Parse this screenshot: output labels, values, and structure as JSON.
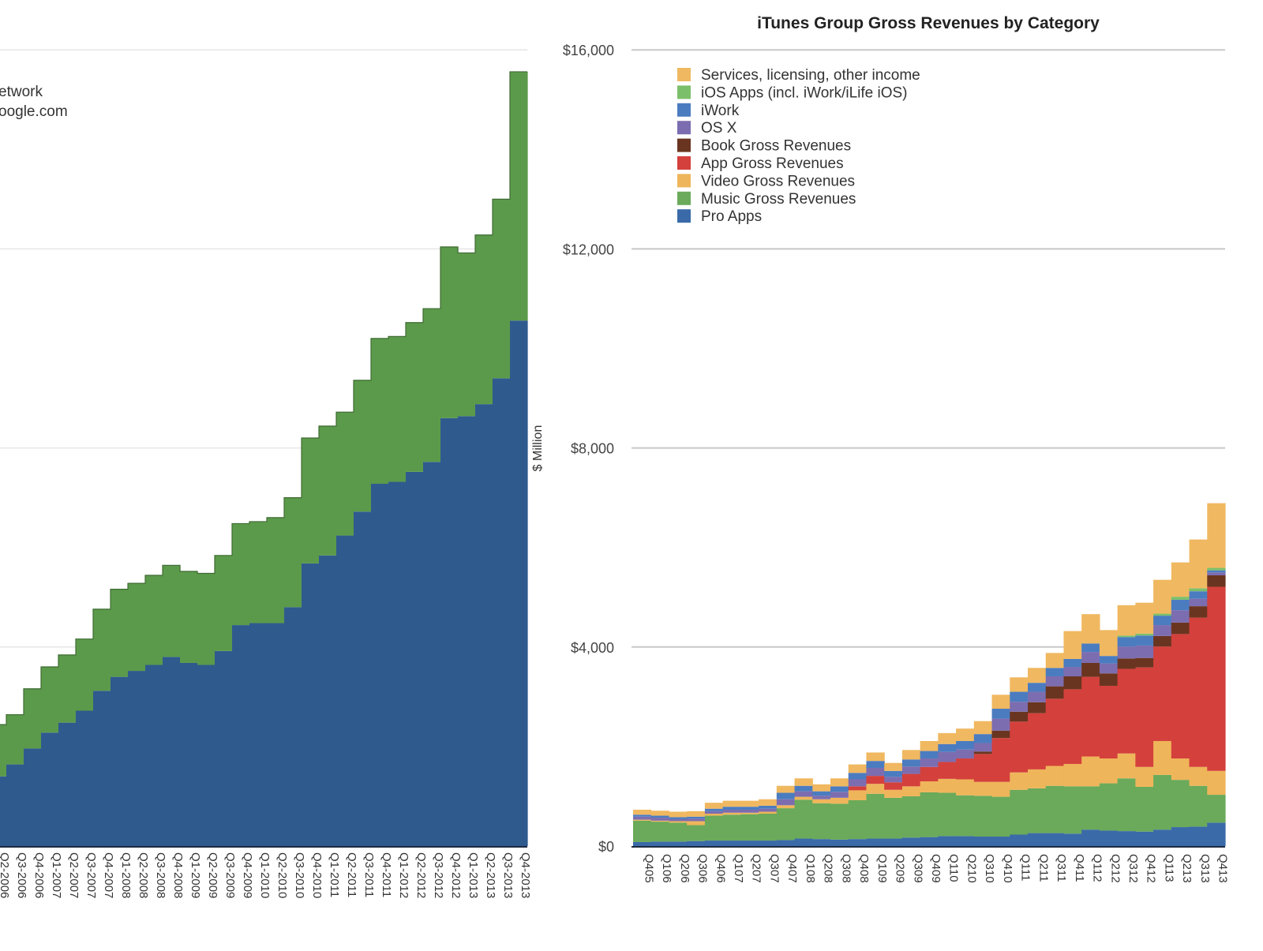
{
  "chart_data": [
    {
      "type": "area",
      "stacked": true,
      "stepped": true,
      "title": "",
      "xlabel": "",
      "ylabel": "",
      "legend_fragments": [
        "etwork",
        "oogle.com"
      ],
      "y_units": "gridline steps (axis tick labels cropped out of view)",
      "ylim": [
        0,
        4
      ],
      "grid": true,
      "categories": [
        "Q2-2006",
        "Q3-2006",
        "Q4-2006",
        "Q1-2007",
        "Q2-2007",
        "Q3-2007",
        "Q4-2007",
        "Q1-2008",
        "Q2-2008",
        "Q3-2008",
        "Q4-2008",
        "Q1-2009",
        "Q2-2009",
        "Q3-2009",
        "Q4-2009",
        "Q1-2010",
        "Q2-2010",
        "Q3-2010",
        "Q4-2010",
        "Q1-2011",
        "Q2-2011",
        "Q3-2011",
        "Q4-2011",
        "Q1-2012",
        "Q2-2012",
        "Q3-2012",
        "Q4-2012",
        "Q1-2013",
        "Q2-2013",
        "Q3-2013",
        "Q4-2013"
      ],
      "series": [
        {
          "name": "Blue series (bottom)",
          "color": "#2f5a8e",
          "values": [
            0.35,
            0.41,
            0.49,
            0.57,
            0.62,
            0.68,
            0.78,
            0.85,
            0.88,
            0.91,
            0.95,
            0.92,
            0.91,
            0.98,
            1.11,
            1.12,
            1.12,
            1.2,
            1.42,
            1.46,
            1.56,
            1.68,
            1.82,
            1.83,
            1.88,
            1.93,
            2.15,
            2.16,
            2.22,
            2.35,
            2.64
          ]
        },
        {
          "name": "Green series (top)",
          "color": "#5b9a4a",
          "values": [
            0.26,
            0.25,
            0.3,
            0.33,
            0.34,
            0.36,
            0.41,
            0.44,
            0.44,
            0.45,
            0.46,
            0.46,
            0.46,
            0.48,
            0.51,
            0.51,
            0.53,
            0.55,
            0.63,
            0.65,
            0.62,
            0.66,
            0.73,
            0.73,
            0.75,
            0.77,
            0.86,
            0.82,
            0.85,
            0.9,
            1.25
          ]
        }
      ]
    },
    {
      "type": "area",
      "stacked": true,
      "stepped": true,
      "title": "iTunes Group Gross Revenues by Category",
      "xlabel": "",
      "ylabel": "$ Million",
      "ylim": [
        0,
        16000
      ],
      "yticks": [
        "$0",
        "$4,000",
        "$8,000",
        "$12,000",
        "$16,000"
      ],
      "ytick_values": [
        0,
        4000,
        8000,
        12000,
        16000
      ],
      "grid": true,
      "legend_position": "top-left",
      "categories": [
        "Q405",
        "Q106",
        "Q206",
        "Q306",
        "Q406",
        "Q107",
        "Q207",
        "Q307",
        "Q407",
        "Q108",
        "Q208",
        "Q308",
        "Q408",
        "Q109",
        "Q209",
        "Q309",
        "Q409",
        "Q110",
        "Q210",
        "Q310",
        "Q410",
        "Q111",
        "Q211",
        "Q311",
        "Q411",
        "Q112",
        "Q212",
        "Q312",
        "Q412",
        "Q113",
        "Q213",
        "Q313",
        "Q413"
      ],
      "series": [
        {
          "name": "Pro Apps",
          "color": "#3a6aa8",
          "values": [
            80,
            90,
            90,
            100,
            110,
            110,
            110,
            110,
            120,
            150,
            140,
            130,
            140,
            150,
            150,
            170,
            180,
            200,
            200,
            190,
            190,
            230,
            260,
            260,
            250,
            330,
            310,
            300,
            290,
            330,
            380,
            390,
            470
          ]
        },
        {
          "name": "Music Gross Revenues",
          "color": "#6aaa5a",
          "values": [
            430,
            400,
            380,
            320,
            500,
            520,
            530,
            540,
            640,
            780,
            720,
            720,
            780,
            900,
            820,
            830,
            900,
            870,
            820,
            820,
            800,
            900,
            900,
            950,
            950,
            870,
            950,
            1060,
            900,
            1100,
            950,
            820,
            560
          ]
        },
        {
          "name": "Video Gross Revenues",
          "color": "#efb55a",
          "values": [
            20,
            20,
            30,
            80,
            40,
            40,
            30,
            40,
            60,
            60,
            80,
            120,
            200,
            200,
            160,
            200,
            220,
            280,
            320,
            280,
            300,
            350,
            380,
            400,
            450,
            600,
            500,
            500,
            400,
            680,
            430,
            380,
            480
          ]
        },
        {
          "name": "App Gross Revenues",
          "color": "#d4403c",
          "values": [
            0,
            0,
            0,
            0,
            0,
            0,
            0,
            0,
            0,
            0,
            0,
            0,
            80,
            160,
            150,
            250,
            290,
            340,
            420,
            560,
            880,
            1020,
            1130,
            1350,
            1500,
            1600,
            1460,
            1700,
            2000,
            1900,
            2500,
            3000,
            3700
          ]
        },
        {
          "name": "Book Gross Revenues",
          "color": "#6a3520",
          "values": [
            0,
            0,
            0,
            0,
            0,
            0,
            0,
            0,
            0,
            0,
            0,
            0,
            0,
            0,
            0,
            0,
            0,
            0,
            0,
            50,
            150,
            200,
            220,
            250,
            260,
            280,
            250,
            210,
            190,
            210,
            230,
            230,
            230
          ]
        },
        {
          "name": "OS X",
          "color": "#7c6db0",
          "values": [
            60,
            60,
            40,
            50,
            50,
            60,
            60,
            60,
            120,
            110,
            70,
            120,
            140,
            160,
            110,
            150,
            170,
            200,
            180,
            170,
            240,
            200,
            210,
            200,
            190,
            220,
            200,
            240,
            250,
            220,
            250,
            150,
            60
          ]
        },
        {
          "name": "iWork",
          "color": "#4b7cc0",
          "values": [
            40,
            40,
            40,
            40,
            50,
            60,
            60,
            60,
            130,
            110,
            90,
            110,
            130,
            140,
            120,
            140,
            150,
            160,
            170,
            180,
            200,
            200,
            180,
            170,
            160,
            170,
            150,
            190,
            200,
            190,
            210,
            150,
            40
          ]
        },
        {
          "name": "iOS Apps (incl. iWork/iLife iOS)",
          "color": "#7cbf6a",
          "values": [
            0,
            0,
            0,
            0,
            0,
            0,
            0,
            0,
            0,
            0,
            0,
            0,
            0,
            0,
            0,
            0,
            0,
            0,
            0,
            0,
            0,
            0,
            0,
            0,
            0,
            0,
            0,
            30,
            40,
            40,
            60,
            60,
            50
          ]
        },
        {
          "name": "Services, licensing, other income",
          "color": "#f0b860",
          "values": [
            100,
            100,
            110,
            110,
            120,
            120,
            120,
            130,
            140,
            150,
            140,
            160,
            170,
            170,
            160,
            190,
            200,
            220,
            250,
            260,
            280,
            290,
            300,
            300,
            560,
            590,
            520,
            610,
            620,
            680,
            690,
            980,
            1300
          ]
        }
      ]
    }
  ]
}
